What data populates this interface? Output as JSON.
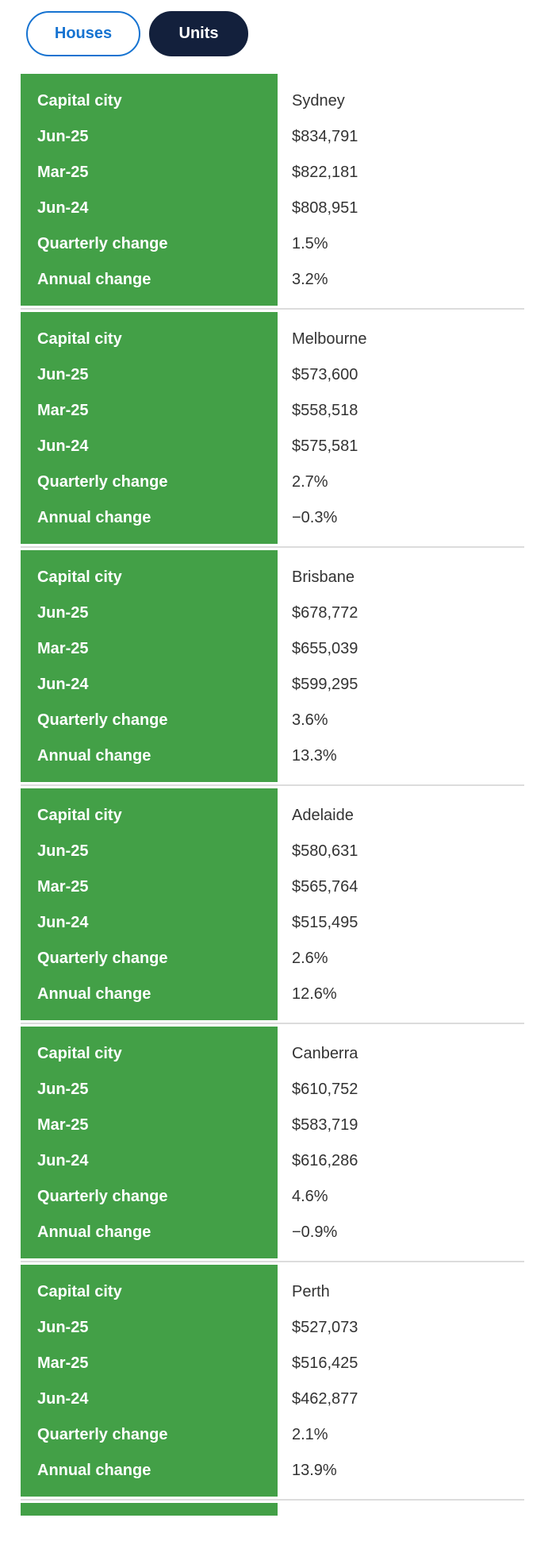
{
  "toggle": {
    "houses_label": "Houses",
    "units_label": "Units",
    "active": "Units"
  },
  "row_labels": [
    "Capital city",
    "Jun-25",
    "Mar-25",
    "Jun-24",
    "Quarterly change",
    "Annual change"
  ],
  "row_keys": [
    "city",
    "jun_25",
    "mar_25",
    "jun_24",
    "quarterly_change",
    "annual_change"
  ],
  "sections": [
    {
      "city": "Sydney",
      "jun_25": "$834,791",
      "mar_25": "$822,181",
      "jun_24": "$808,951",
      "quarterly_change": "1.5%",
      "annual_change": "3.2%"
    },
    {
      "city": "Melbourne",
      "jun_25": "$573,600",
      "mar_25": "$558,518",
      "jun_24": "$575,581",
      "quarterly_change": "2.7%",
      "annual_change": "−0.3%"
    },
    {
      "city": "Brisbane",
      "jun_25": "$678,772",
      "mar_25": "$655,039",
      "jun_24": "$599,295",
      "quarterly_change": "3.6%",
      "annual_change": "13.3%"
    },
    {
      "city": "Adelaide",
      "jun_25": "$580,631",
      "mar_25": "$565,764",
      "jun_24": "$515,495",
      "quarterly_change": "2.6%",
      "annual_change": "12.6%"
    },
    {
      "city": "Canberra",
      "jun_25": "$610,752",
      "mar_25": "$583,719",
      "jun_24": "$616,286",
      "quarterly_change": "4.6%",
      "annual_change": "−0.9%"
    },
    {
      "city": "Perth",
      "jun_25": "$527,073",
      "mar_25": "$516,425",
      "jun_24": "$462,877",
      "quarterly_change": "2.1%",
      "annual_change": "13.9%"
    }
  ],
  "colors": {
    "green": "#43a047",
    "navy": "#13203c",
    "blue": "#1673d1",
    "divider": "#dcdcdc",
    "value_text": "#333333"
  }
}
